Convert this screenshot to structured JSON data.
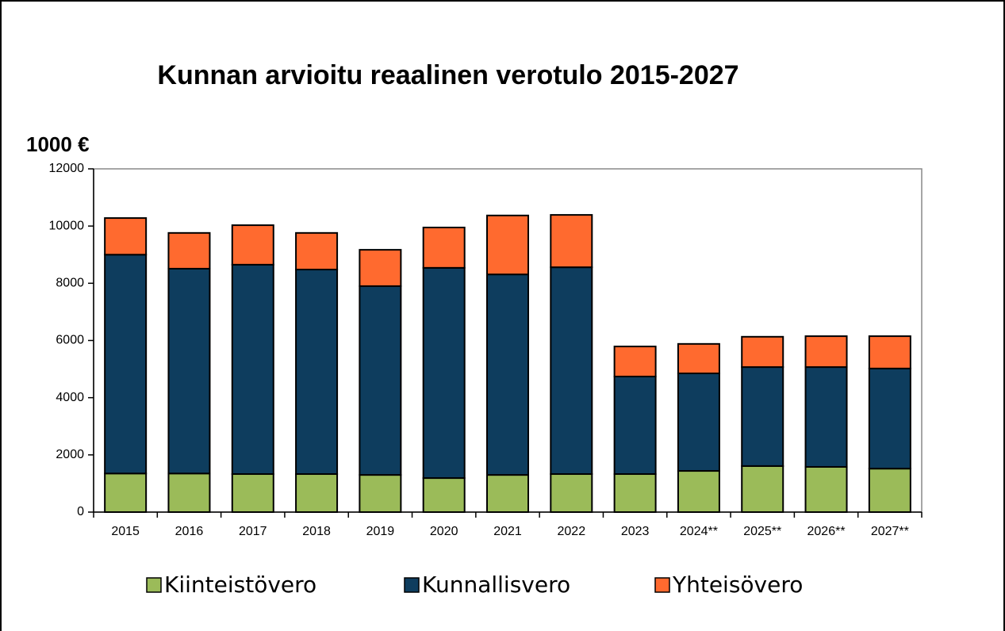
{
  "chart_data": {
    "type": "stacked_bar",
    "title": "Kunnan arvioitu reaalinen verotulo 2015-2027",
    "y_label": "1000 €",
    "categories": [
      "2015",
      "2016",
      "2017",
      "2018",
      "2019",
      "2020",
      "2021",
      "2022",
      "2023",
      "2024**",
      "2025**",
      "2026**",
      "2027**"
    ],
    "series": [
      {
        "name": "Kiinteistövero",
        "color": "#9bbb59",
        "values": [
          1350,
          1350,
          1330,
          1330,
          1300,
          1190,
          1300,
          1330,
          1330,
          1440,
          1610,
          1580,
          1520
        ]
      },
      {
        "name": "Kunnallisvero",
        "color": "#0e3d5e",
        "values": [
          7650,
          7160,
          7320,
          7150,
          6600,
          7350,
          7010,
          7230,
          3410,
          3410,
          3460,
          3490,
          3500
        ]
      },
      {
        "name": "Yhteisövero",
        "color": "#ff6a2f",
        "values": [
          1280,
          1250,
          1380,
          1280,
          1270,
          1410,
          2060,
          1830,
          1050,
          1030,
          1060,
          1080,
          1130
        ]
      }
    ],
    "ylim": [
      0,
      12000
    ],
    "yticks": [
      0,
      2000,
      4000,
      6000,
      8000,
      10000,
      12000
    ],
    "legend": "bottom"
  }
}
